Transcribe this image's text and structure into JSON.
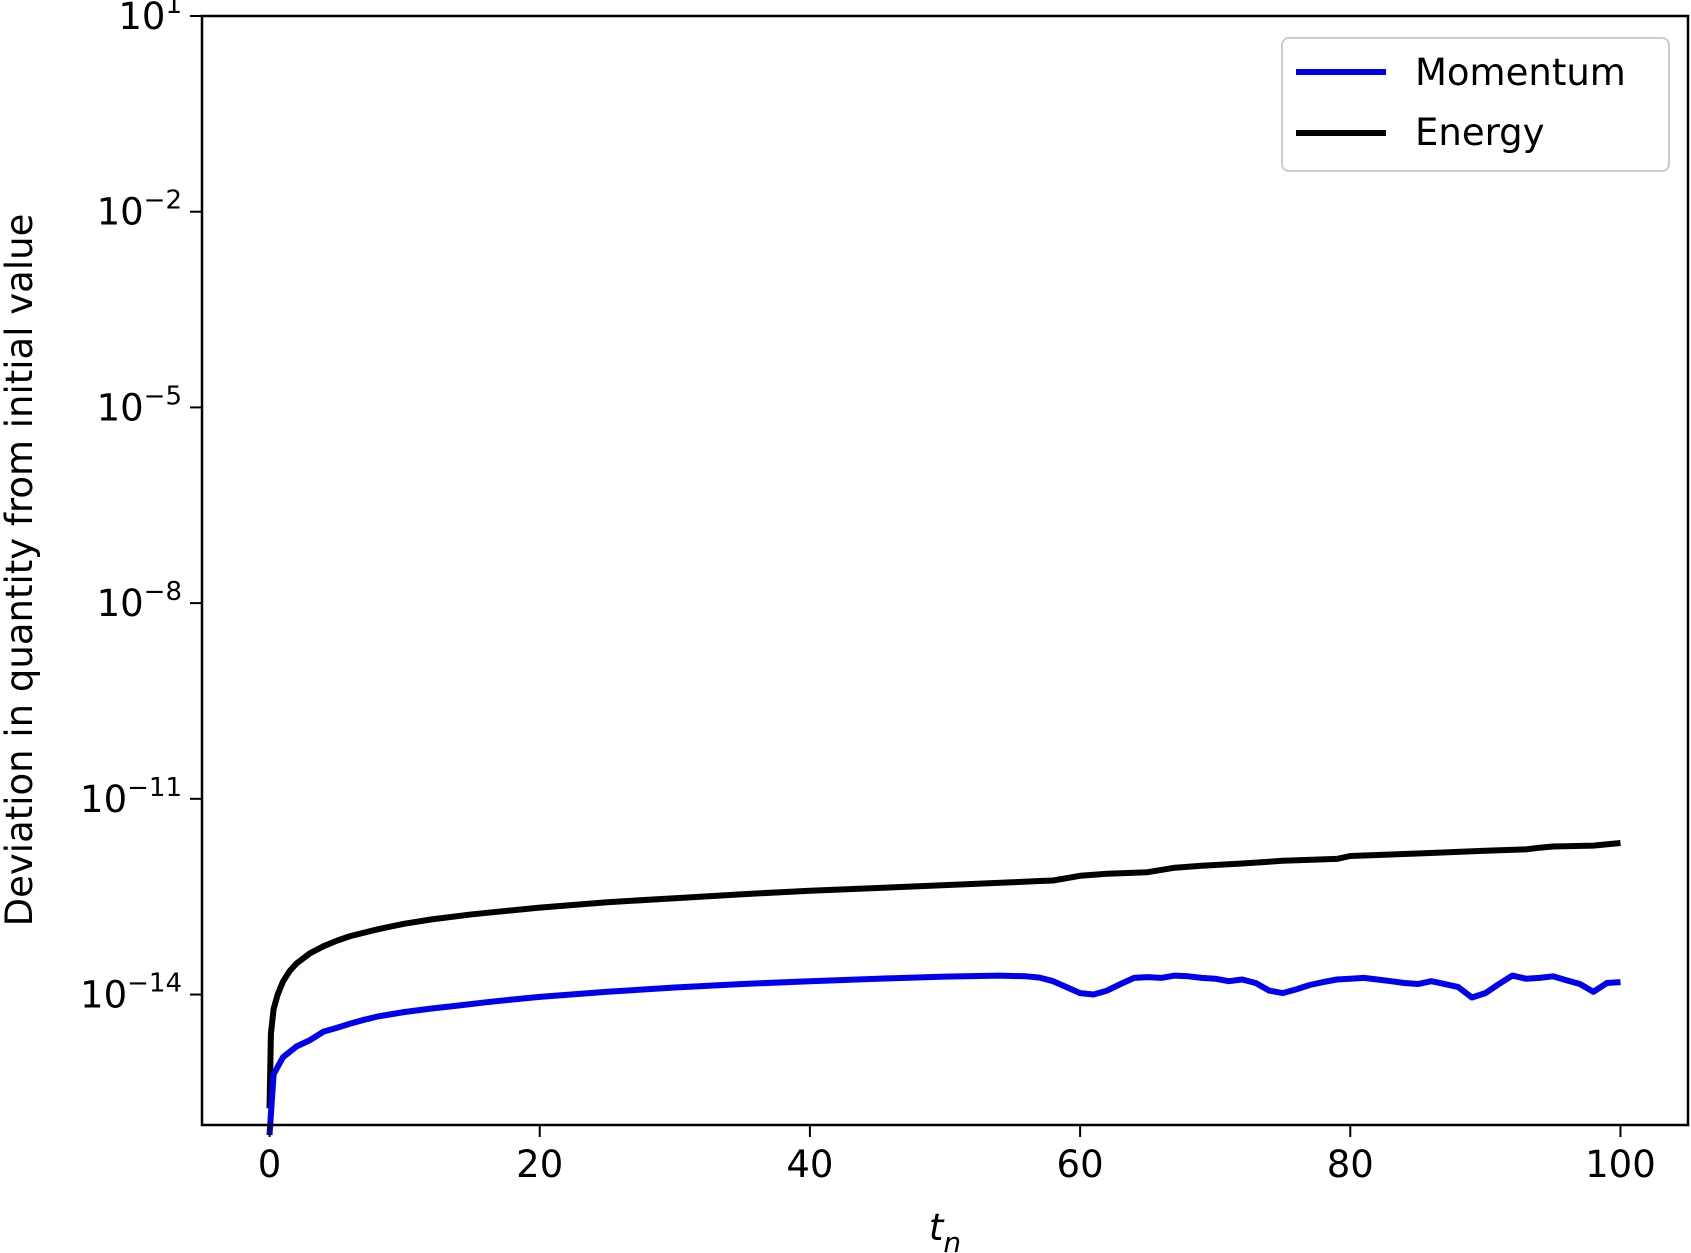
{
  "chart_data": {
    "type": "line",
    "xlabel": "t",
    "xlabel_subscript": "n",
    "ylabel": "Deviation in quantity from initial value",
    "yscale": "log",
    "xlim": [
      -5,
      105
    ],
    "ylim": [
      1e-16,
      10
    ],
    "xticks": [
      0,
      20,
      40,
      60,
      80,
      100
    ],
    "xtick_labels": [
      "0",
      "20",
      "40",
      "60",
      "80",
      "100"
    ],
    "yticks": [
      {
        "base": "10",
        "exp": "1",
        "value": 10.0
      },
      {
        "base": "10",
        "exp": "−2",
        "value": 0.01
      },
      {
        "base": "10",
        "exp": "−5",
        "value": 1e-05
      },
      {
        "base": "10",
        "exp": "−8",
        "value": 1e-08
      },
      {
        "base": "10",
        "exp": "−11",
        "value": 1e-11
      },
      {
        "base": "10",
        "exp": "−14",
        "value": 1e-14
      }
    ],
    "legend_position": "top-right",
    "grid": false,
    "series": [
      {
        "name": "Momentum",
        "color": "#0000ee",
        "x": [
          0,
          0.3,
          1,
          2,
          3,
          4,
          5,
          6,
          7,
          8,
          10,
          12,
          14,
          16,
          18,
          20,
          25,
          30,
          35,
          40,
          45,
          50,
          54,
          56,
          57,
          58,
          59,
          60,
          61,
          62,
          63,
          64,
          65,
          66,
          67,
          68,
          69,
          70,
          71,
          72,
          73,
          74,
          75,
          76,
          77,
          78,
          79,
          80,
          81,
          82,
          83,
          84,
          85,
          86,
          87,
          88,
          89,
          90,
          91,
          92,
          93,
          94,
          95,
          96,
          97,
          98,
          99,
          100
        ],
        "y": [
          7e-17,
          6e-16,
          1.1e-15,
          1.6e-15,
          2e-15,
          2.7e-15,
          3.1e-15,
          3.6e-15,
          4.1e-15,
          4.6e-15,
          5.4e-15,
          6.1e-15,
          6.8e-15,
          7.6e-15,
          8.4e-15,
          9.2e-15,
          1.1e-14,
          1.28e-14,
          1.45e-14,
          1.6e-14,
          1.75e-14,
          1.88e-14,
          1.95e-14,
          1.9e-14,
          1.82e-14,
          1.6e-14,
          1.3e-14,
          1.05e-14,
          1e-14,
          1.15e-14,
          1.45e-14,
          1.8e-14,
          1.85e-14,
          1.8e-14,
          1.95e-14,
          1.9e-14,
          1.8e-14,
          1.75e-14,
          1.6e-14,
          1.7e-14,
          1.5e-14,
          1.15e-14,
          1.05e-14,
          1.2e-14,
          1.4e-14,
          1.55e-14,
          1.7e-14,
          1.75e-14,
          1.8e-14,
          1.7e-14,
          1.6e-14,
          1.5e-14,
          1.45e-14,
          1.6e-14,
          1.45e-14,
          1.3e-14,
          9e-15,
          1.05e-14,
          1.45e-14,
          1.95e-14,
          1.75e-14,
          1.8e-14,
          1.9e-14,
          1.65e-14,
          1.45e-14,
          1.1e-14,
          1.5e-14,
          1.55e-14
        ]
      },
      {
        "name": "Energy",
        "color": "#000000",
        "x": [
          0,
          0.1,
          0.3,
          0.6,
          1,
          1.5,
          2,
          3,
          4,
          5,
          6,
          8,
          10,
          12,
          15,
          20,
          25,
          30,
          35,
          40,
          45,
          50,
          55,
          57,
          58,
          60,
          62,
          65,
          67,
          69,
          72,
          75,
          79,
          80,
          85,
          90,
          93,
          94,
          95,
          98,
          100
        ],
        "y": [
          1.8e-16,
          2.5e-15,
          6e-15,
          1e-14,
          1.6e-14,
          2.3e-14,
          3e-14,
          4.3e-14,
          5.5e-14,
          6.7e-14,
          7.9e-14,
          1e-13,
          1.22e-13,
          1.42e-13,
          1.7e-13,
          2.15e-13,
          2.6e-13,
          3e-13,
          3.45e-13,
          3.9e-13,
          4.3e-13,
          4.75e-13,
          5.25e-13,
          5.5e-13,
          5.6e-13,
          6.6e-13,
          7.1e-13,
          7.5e-13,
          8.8e-13,
          9.4e-13,
          1.02e-12,
          1.12e-12,
          1.2e-12,
          1.33e-12,
          1.45e-12,
          1.6e-12,
          1.68e-12,
          1.78e-12,
          1.86e-12,
          1.92e-12,
          2.1e-12
        ]
      }
    ]
  }
}
